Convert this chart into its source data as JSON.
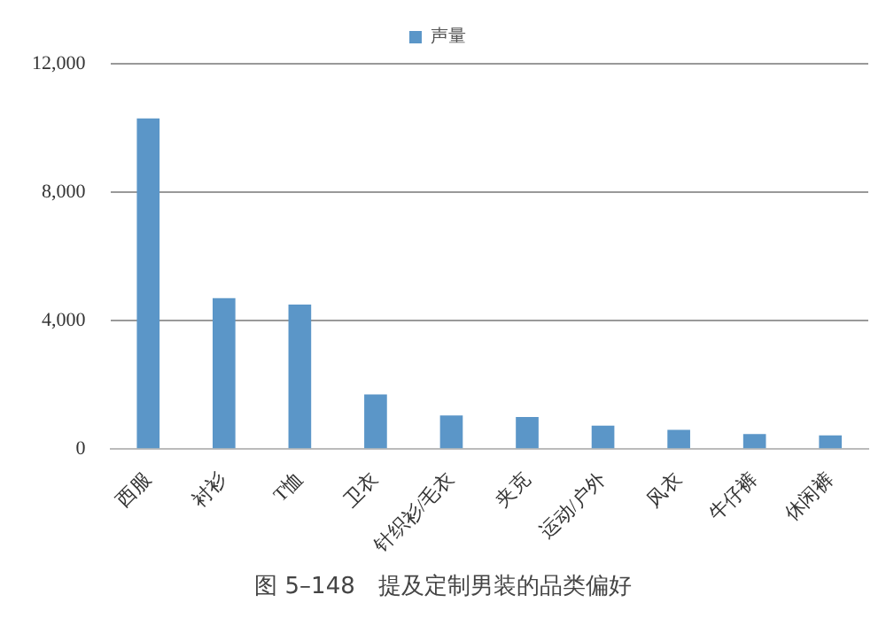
{
  "chart_data": {
    "type": "bar",
    "categories": [
      "西服",
      "衬衫",
      "T恤",
      "卫衣",
      "针织衫/毛衣",
      "夹克",
      "运动/户外",
      "风衣",
      "牛仔裤",
      "休闲裤"
    ],
    "series": [
      {
        "name": "声量",
        "color": "#5b96c8",
        "values": [
          10300,
          4700,
          4500,
          1700,
          1050,
          1000,
          730,
          600,
          470,
          430
        ]
      }
    ],
    "ylim": [
      0,
      12000
    ],
    "yticks": [
      {
        "value": 0,
        "label": "0"
      },
      {
        "value": 4000,
        "label": "4,000"
      },
      {
        "value": 8000,
        "label": "8,000"
      },
      {
        "value": 12000,
        "label": "12,000"
      }
    ],
    "grid": "y",
    "legend": "top",
    "annotations": [
      "图 5–148　提及定制男装的品类偏好"
    ]
  }
}
